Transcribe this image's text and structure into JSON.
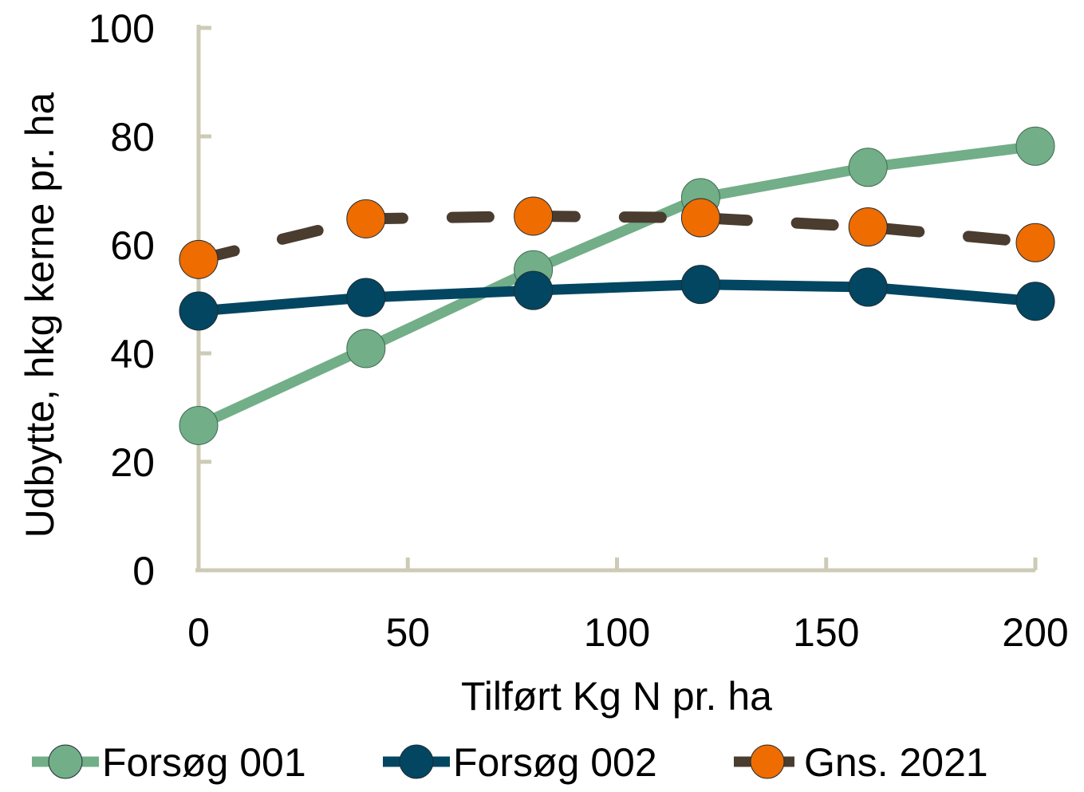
{
  "chart_data": {
    "type": "line",
    "xlabel": "Tilført Kg N pr. ha",
    "ylabel": "Udbytte, hkg kerne pr. ha",
    "xlim": [
      0,
      200
    ],
    "ylim": [
      0,
      100
    ],
    "x_ticks": [
      0,
      50,
      100,
      150,
      200
    ],
    "y_ticks": [
      0,
      20,
      40,
      60,
      80,
      100
    ],
    "x_tick_labels": [
      "0",
      "50",
      "100",
      "150",
      "200"
    ],
    "y_tick_labels": [
      "0",
      "20",
      "40",
      "60",
      "80",
      "100"
    ],
    "x": [
      0,
      40,
      80,
      120,
      160,
      200
    ],
    "grid": false,
    "legend_position": "bottom",
    "axis_color": "#cdcbb6",
    "series": [
      {
        "name": "Forsøg 001",
        "values": [
          26.7,
          40.9,
          55.4,
          68.7,
          74.3,
          78.2
        ],
        "line_color": "#72ae88",
        "marker_color": "#72ae88",
        "line_style": "solid"
      },
      {
        "name": "Forsøg 002",
        "values": [
          47.8,
          50.3,
          51.6,
          52.7,
          52.2,
          49.6
        ],
        "line_color": "#034661",
        "marker_color": "#034661",
        "line_style": "solid"
      },
      {
        "name": "Gns. 2021",
        "values": [
          57.3,
          64.8,
          65.3,
          65.0,
          63.3,
          60.4
        ],
        "line_color": "#4a3c2f",
        "marker_color": "#ee6c00",
        "line_style": "dashed"
      }
    ]
  }
}
